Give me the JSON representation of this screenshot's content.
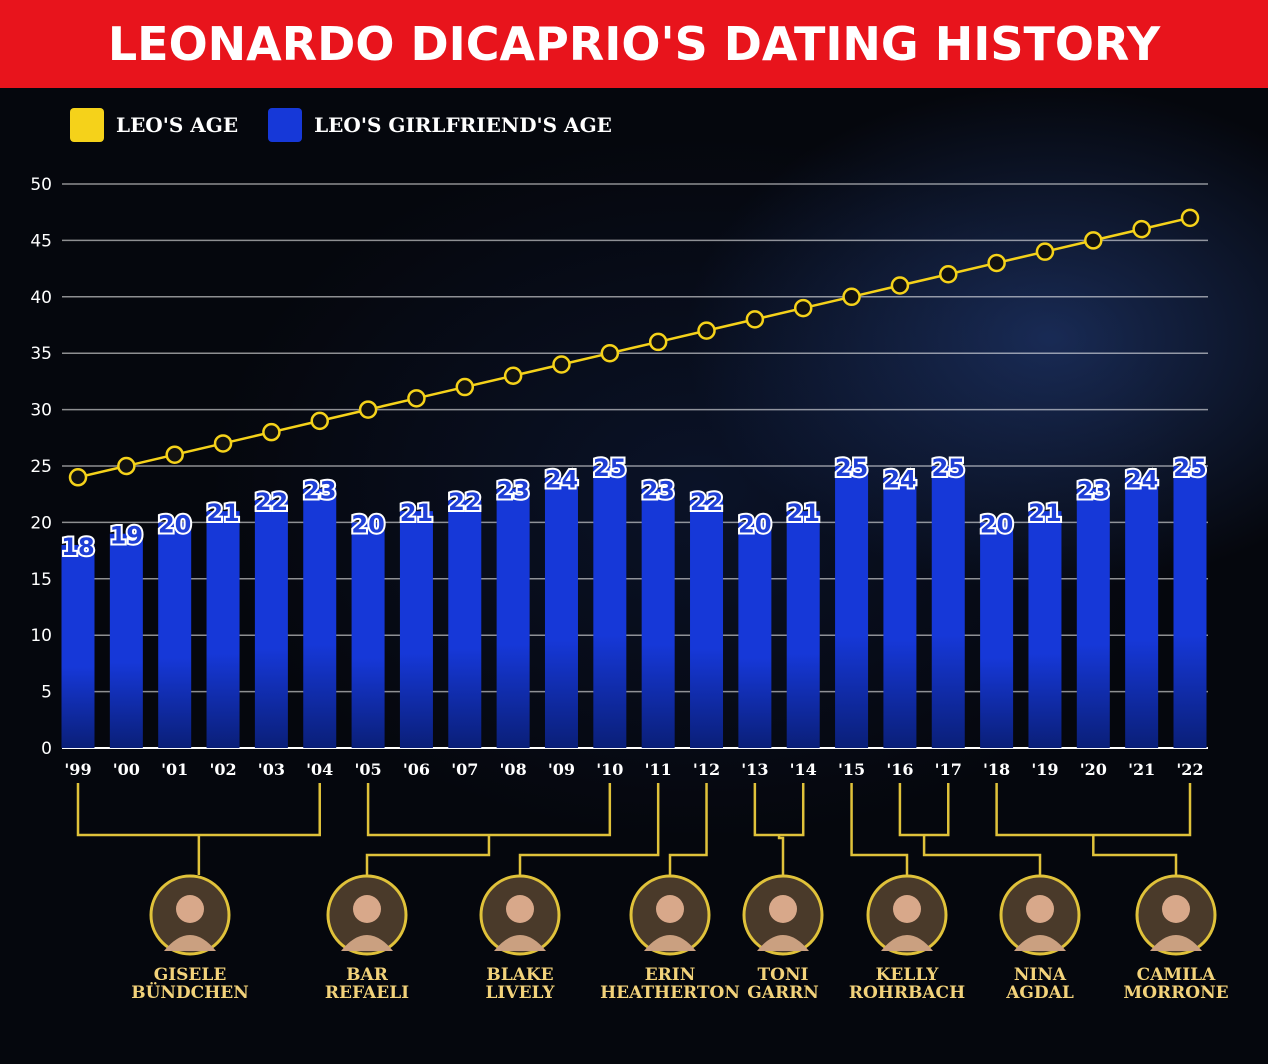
{
  "title": "LEONARDO DICAPRIO'S DATING HISTORY",
  "colors": {
    "title_bg": "#e8141c",
    "leo_line": "#f5d21a",
    "bar": "#1638d8",
    "bracket": "#e0c23a"
  },
  "legend": {
    "leo_age": "LEO'S AGE",
    "girlfriend_age": "LEO'S GIRLFRIEND'S AGE"
  },
  "chart_data": {
    "type": "bar",
    "categories": [
      "'99",
      "'00",
      "'01",
      "'02",
      "'03",
      "'04",
      "'05",
      "'06",
      "'07",
      "'08",
      "'09",
      "'10",
      "'11",
      "'12",
      "'13",
      "'14",
      "'15",
      "'16",
      "'17",
      "'18",
      "'19",
      "'20",
      "'21",
      "'22"
    ],
    "series": [
      {
        "name": "LEO'S GIRLFRIEND'S AGE",
        "type": "bar",
        "values": [
          18,
          19,
          20,
          21,
          22,
          23,
          20,
          21,
          22,
          23,
          24,
          25,
          23,
          22,
          20,
          21,
          25,
          24,
          25,
          20,
          21,
          23,
          24,
          25
        ]
      },
      {
        "name": "LEO'S AGE",
        "type": "line",
        "values": [
          24,
          25,
          26,
          27,
          28,
          29,
          30,
          31,
          32,
          33,
          34,
          35,
          36,
          37,
          38,
          39,
          40,
          41,
          42,
          43,
          44,
          45,
          46,
          47
        ]
      }
    ],
    "yticks": [
      0,
      5,
      10,
      15,
      20,
      25,
      30,
      35,
      40,
      45,
      50
    ],
    "ylim": [
      0,
      50
    ],
    "grid": true,
    "legend_position": "top-left"
  },
  "girlfriends": [
    {
      "name_line1": "GISELE",
      "name_line2": "BÜNDCHEN",
      "years": [
        "'99",
        "'04"
      ]
    },
    {
      "name_line1": "BAR",
      "name_line2": "REFAELI",
      "years": [
        "'05",
        "'10"
      ]
    },
    {
      "name_line1": "BLAKE",
      "name_line2": "LIVELY",
      "years": [
        "'11"
      ]
    },
    {
      "name_line1": "ERIN",
      "name_line2": "HEATHERTON",
      "years": [
        "'12"
      ]
    },
    {
      "name_line1": "TONI",
      "name_line2": "GARRN",
      "years": [
        "'13",
        "'14"
      ]
    },
    {
      "name_line1": "KELLY",
      "name_line2": "ROHRBACH",
      "years": [
        "'15"
      ]
    },
    {
      "name_line1": "NINA",
      "name_line2": "AGDAL",
      "years": [
        "'16",
        "'17"
      ]
    },
    {
      "name_line1": "CAMILA",
      "name_line2": "MORRONE",
      "years": [
        "'18",
        "'22"
      ]
    }
  ]
}
